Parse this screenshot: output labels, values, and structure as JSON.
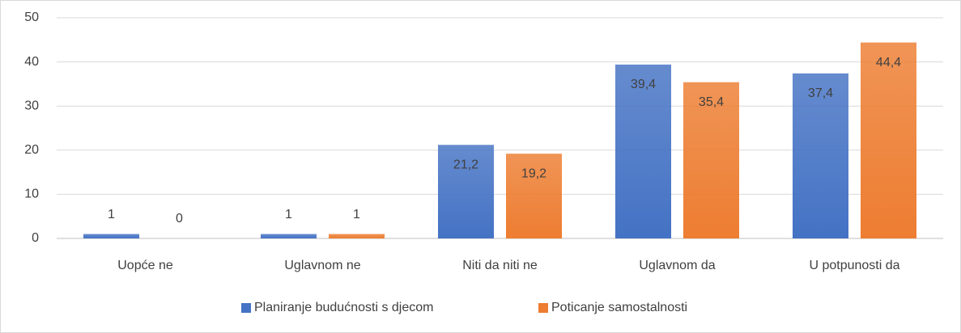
{
  "chart_data": {
    "type": "bar",
    "categories": [
      "Uopće ne",
      "Uglavnom ne",
      "Niti da niti ne",
      "Uglavnom da",
      "U potpunosti da"
    ],
    "series": [
      {
        "name": "Planiranje budućnosti s djecom",
        "color": "#4472c4",
        "values": [
          1,
          1,
          21.2,
          39.4,
          37.4
        ],
        "value_labels": [
          "1",
          "1",
          "21,2",
          "39,4",
          "37,4"
        ]
      },
      {
        "name": "Poticanje samostalnosti",
        "color": "#ed7d31",
        "values": [
          0,
          1,
          19.2,
          35.4,
          44.4
        ],
        "value_labels": [
          "0",
          "1",
          "19,2",
          "35,4",
          "44,4"
        ]
      }
    ],
    "ylim": [
      0,
      50
    ],
    "yticks": [
      0,
      10,
      20,
      30,
      40,
      50
    ],
    "grid": true,
    "legend": "bottom"
  }
}
